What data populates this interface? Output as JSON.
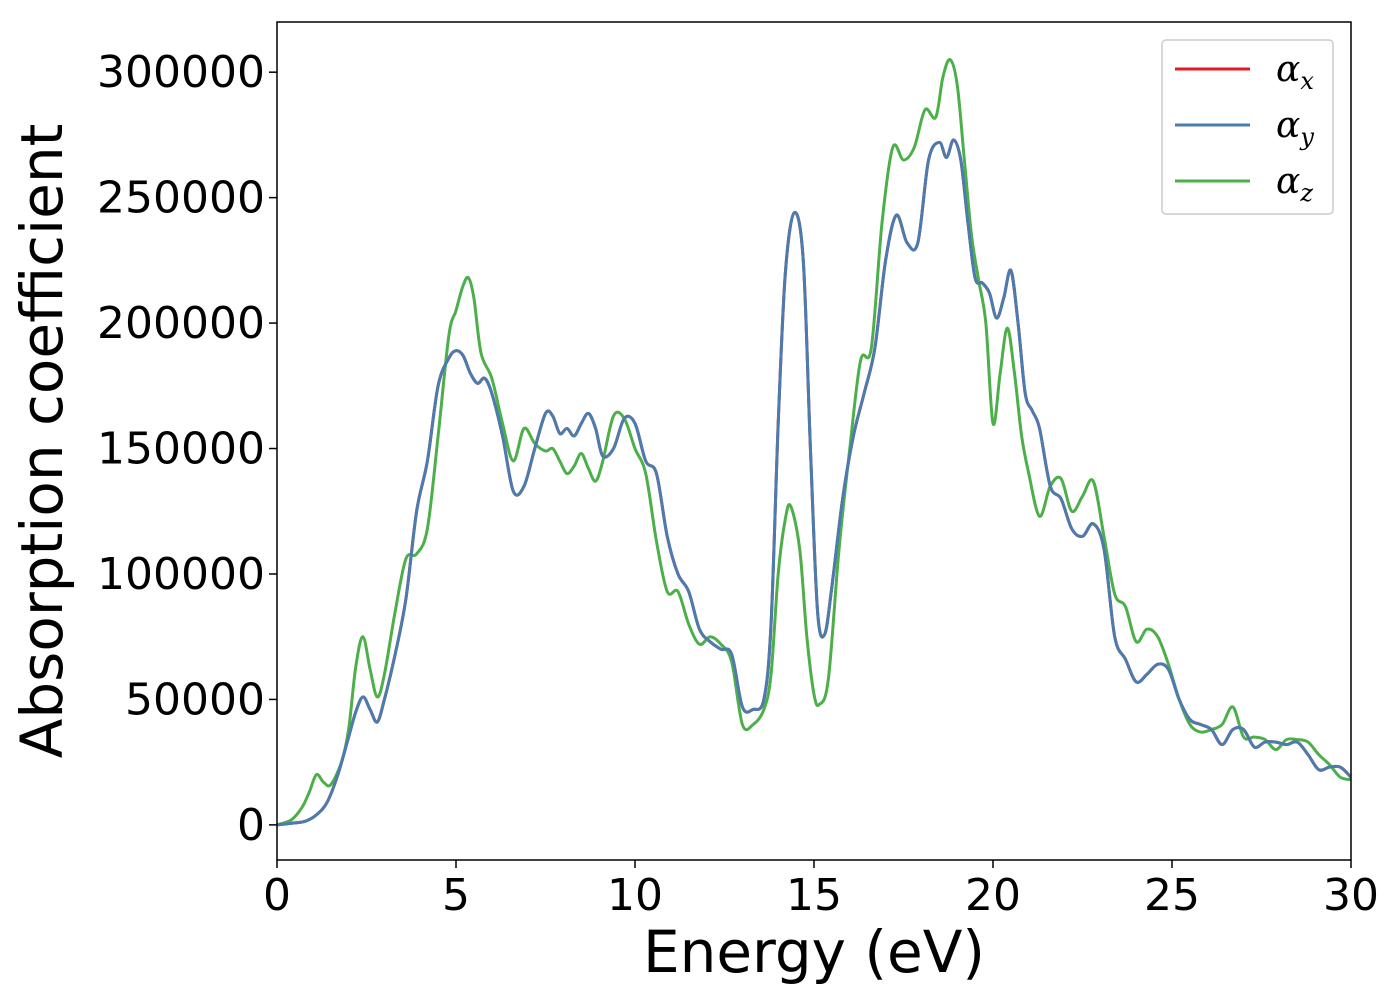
{
  "chart_data": {
    "type": "line",
    "xlabel": "Energy (eV)",
    "ylabel": "Absorption coefficient",
    "xlim": [
      0,
      30
    ],
    "ylim": [
      -14000,
      320000
    ],
    "xticks": [
      0,
      5,
      10,
      15,
      20,
      25,
      30
    ],
    "xtick_labels": [
      "0",
      "5",
      "10",
      "15",
      "20",
      "25",
      "30"
    ],
    "yticks": [
      0,
      50000,
      100000,
      150000,
      200000,
      250000,
      300000
    ],
    "ytick_labels": [
      "0",
      "50000",
      "100000",
      "150000",
      "200000",
      "250000",
      "300000"
    ],
    "grid": false,
    "legend_position": "top-right",
    "series": [
      {
        "name": "α_x",
        "legend_base": "α",
        "legend_sub": "x",
        "color": "#e41a1c",
        "x": [
          0,
          0.5,
          0.8,
          1.1,
          1.4,
          1.7,
          2.0,
          2.2,
          2.4,
          2.6,
          2.8,
          3.0,
          3.3,
          3.6,
          3.9,
          4.2,
          4.5,
          4.8,
          5.0,
          5.2,
          5.4,
          5.6,
          5.8,
          6.0,
          6.3,
          6.6,
          6.9,
          7.2,
          7.5,
          7.7,
          7.9,
          8.1,
          8.3,
          8.5,
          8.7,
          8.9,
          9.1,
          9.4,
          9.7,
          10.0,
          10.3,
          10.6,
          10.9,
          11.2,
          11.5,
          11.8,
          12.1,
          12.4,
          12.7,
          13.0,
          13.3,
          13.6,
          13.8,
          14.0,
          14.2,
          14.45,
          14.7,
          14.9,
          15.1,
          15.3,
          15.5,
          15.8,
          16.1,
          16.4,
          16.7,
          17.0,
          17.3,
          17.6,
          17.9,
          18.2,
          18.5,
          18.7,
          18.9,
          19.1,
          19.3,
          19.5,
          19.7,
          19.9,
          20.1,
          20.3,
          20.5,
          20.7,
          20.9,
          21.1,
          21.3,
          21.6,
          21.9,
          22.2,
          22.5,
          22.8,
          23.1,
          23.4,
          23.7,
          24.0,
          24.3,
          24.6,
          24.9,
          25.2,
          25.5,
          25.8,
          26.1,
          26.4,
          26.7,
          27.0,
          27.3,
          27.6,
          27.9,
          28.2,
          28.5,
          28.8,
          29.1,
          29.4,
          29.7,
          30
        ],
        "y": [
          0,
          800,
          1500,
          4000,
          9000,
          20000,
          35000,
          45000,
          51000,
          46000,
          41000,
          50000,
          68000,
          90000,
          125000,
          145000,
          175000,
          186000,
          189000,
          187000,
          180000,
          176000,
          178000,
          172000,
          155000,
          133000,
          135000,
          150000,
          164000,
          163000,
          156000,
          158000,
          155000,
          160000,
          164000,
          158000,
          147000,
          150000,
          162000,
          160000,
          145000,
          140000,
          115000,
          100000,
          93000,
          78000,
          73000,
          70000,
          68000,
          47000,
          46000,
          50000,
          80000,
          160000,
          220000,
          244000,
          225000,
          150000,
          85000,
          76000,
          95000,
          130000,
          155000,
          172000,
          190000,
          225000,
          243000,
          232000,
          232000,
          265000,
          272000,
          266000,
          273000,
          265000,
          240000,
          218000,
          216000,
          212000,
          202000,
          210000,
          221000,
          200000,
          172000,
          165000,
          158000,
          135000,
          130000,
          118000,
          115000,
          120000,
          110000,
          75000,
          66000,
          57000,
          60000,
          64000,
          62000,
          50000,
          42000,
          40000,
          38000,
          32000,
          38000,
          38000,
          31000,
          33000,
          33000,
          32000,
          33000,
          28000,
          22000,
          23000,
          23000,
          19000
        ]
      },
      {
        "name": "α_y",
        "legend_base": "α",
        "legend_sub": "y",
        "color": "#4a7cb0",
        "x": [
          0,
          0.5,
          0.8,
          1.1,
          1.4,
          1.7,
          2.0,
          2.2,
          2.4,
          2.6,
          2.8,
          3.0,
          3.3,
          3.6,
          3.9,
          4.2,
          4.5,
          4.8,
          5.0,
          5.2,
          5.4,
          5.6,
          5.8,
          6.0,
          6.3,
          6.6,
          6.9,
          7.2,
          7.5,
          7.7,
          7.9,
          8.1,
          8.3,
          8.5,
          8.7,
          8.9,
          9.1,
          9.4,
          9.7,
          10.0,
          10.3,
          10.6,
          10.9,
          11.2,
          11.5,
          11.8,
          12.1,
          12.4,
          12.7,
          13.0,
          13.3,
          13.6,
          13.8,
          14.0,
          14.2,
          14.45,
          14.7,
          14.9,
          15.1,
          15.3,
          15.5,
          15.8,
          16.1,
          16.4,
          16.7,
          17.0,
          17.3,
          17.6,
          17.9,
          18.2,
          18.5,
          18.7,
          18.9,
          19.1,
          19.3,
          19.5,
          19.7,
          19.9,
          20.1,
          20.3,
          20.5,
          20.7,
          20.9,
          21.1,
          21.3,
          21.6,
          21.9,
          22.2,
          22.5,
          22.8,
          23.1,
          23.4,
          23.7,
          24.0,
          24.3,
          24.6,
          24.9,
          25.2,
          25.5,
          25.8,
          26.1,
          26.4,
          26.7,
          27.0,
          27.3,
          27.6,
          27.9,
          28.2,
          28.5,
          28.8,
          29.1,
          29.4,
          29.7,
          30
        ],
        "y": [
          0,
          800,
          1500,
          4000,
          9000,
          20000,
          35000,
          45000,
          51000,
          46000,
          41000,
          50000,
          68000,
          90000,
          125000,
          145000,
          175000,
          186000,
          189000,
          187000,
          180000,
          176000,
          178000,
          172000,
          155000,
          133000,
          135000,
          150000,
          164000,
          163000,
          156000,
          158000,
          155000,
          160000,
          164000,
          158000,
          147000,
          150000,
          162000,
          160000,
          145000,
          140000,
          115000,
          100000,
          93000,
          78000,
          73000,
          70000,
          68000,
          47000,
          46000,
          50000,
          80000,
          160000,
          220000,
          244000,
          225000,
          150000,
          85000,
          76000,
          95000,
          130000,
          155000,
          172000,
          190000,
          225000,
          243000,
          232000,
          232000,
          265000,
          272000,
          266000,
          273000,
          265000,
          240000,
          218000,
          216000,
          212000,
          202000,
          210000,
          221000,
          200000,
          172000,
          165000,
          158000,
          135000,
          130000,
          118000,
          115000,
          120000,
          110000,
          75000,
          66000,
          57000,
          60000,
          64000,
          62000,
          50000,
          42000,
          40000,
          38000,
          32000,
          38000,
          38000,
          31000,
          33000,
          33000,
          32000,
          33000,
          28000,
          22000,
          23000,
          23000,
          19000
        ]
      },
      {
        "name": "α_z",
        "legend_base": "α",
        "legend_sub": "z",
        "color": "#4daf4a",
        "x": [
          0,
          0.4,
          0.7,
          0.9,
          1.1,
          1.3,
          1.5,
          1.8,
          2.0,
          2.2,
          2.4,
          2.6,
          2.8,
          3.0,
          3.3,
          3.6,
          3.9,
          4.2,
          4.5,
          4.8,
          5.0,
          5.2,
          5.35,
          5.5,
          5.7,
          6.0,
          6.3,
          6.6,
          6.9,
          7.2,
          7.5,
          7.7,
          7.9,
          8.1,
          8.3,
          8.5,
          8.7,
          8.9,
          9.1,
          9.4,
          9.7,
          10.0,
          10.3,
          10.6,
          10.9,
          11.2,
          11.5,
          11.8,
          12.1,
          12.4,
          12.7,
          13.0,
          13.3,
          13.6,
          13.8,
          14.0,
          14.2,
          14.35,
          14.6,
          14.8,
          15.0,
          15.15,
          15.4,
          15.7,
          16.0,
          16.3,
          16.6,
          16.9,
          17.2,
          17.5,
          17.8,
          18.1,
          18.4,
          18.6,
          18.8,
          19.0,
          19.2,
          19.4,
          19.6,
          19.8,
          20.0,
          20.2,
          20.4,
          20.6,
          20.8,
          21.0,
          21.3,
          21.6,
          21.9,
          22.2,
          22.5,
          22.8,
          23.1,
          23.4,
          23.7,
          24.0,
          24.3,
          24.6,
          24.9,
          25.2,
          25.5,
          25.8,
          26.1,
          26.4,
          26.7,
          27.0,
          27.3,
          27.6,
          27.9,
          28.2,
          28.5,
          28.8,
          29.1,
          29.4,
          29.7,
          30
        ],
        "y": [
          0,
          2000,
          7000,
          13000,
          20000,
          17000,
          16000,
          25000,
          38000,
          63000,
          75000,
          62000,
          51000,
          60000,
          85000,
          106000,
          108000,
          118000,
          155000,
          195000,
          205000,
          215000,
          218000,
          210000,
          188000,
          178000,
          160000,
          145000,
          158000,
          152000,
          149000,
          150000,
          145000,
          140000,
          143000,
          148000,
          142000,
          137000,
          145000,
          163000,
          162000,
          150000,
          140000,
          113000,
          93000,
          93000,
          80000,
          72000,
          75000,
          72000,
          65000,
          40000,
          40000,
          46000,
          60000,
          100000,
          122000,
          127000,
          110000,
          75000,
          52000,
          48000,
          58000,
          110000,
          150000,
          185000,
          190000,
          240000,
          270000,
          265000,
          270000,
          285000,
          282000,
          298000,
          305000,
          295000,
          265000,
          235000,
          217000,
          200000,
          160000,
          180000,
          198000,
          180000,
          155000,
          140000,
          123000,
          135000,
          138000,
          125000,
          131000,
          137000,
          115000,
          92000,
          87000,
          73000,
          78000,
          75000,
          64000,
          50000,
          40000,
          37000,
          38000,
          40000,
          47000,
          35000,
          35000,
          34000,
          30000,
          34000,
          34000,
          33000,
          28000,
          24000,
          19000,
          18000
        ]
      }
    ]
  }
}
